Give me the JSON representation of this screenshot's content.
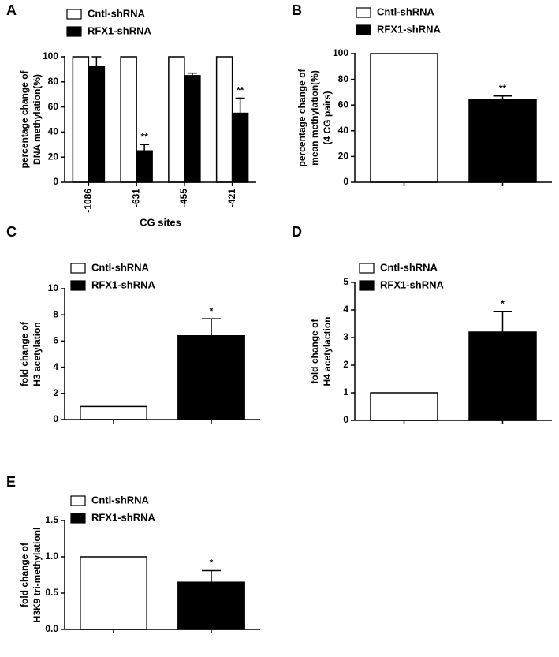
{
  "chart_data": [
    {
      "type": "bar",
      "panel": "A",
      "ylabel": [
        "percentage change of",
        "DNA methylation(%)"
      ],
      "xlabel": "CG sites",
      "categories": [
        "-1086",
        "-631",
        "-455",
        "-421"
      ],
      "series": [
        {
          "name": "Cntl-shRNA",
          "color": "#ffffff",
          "values": [
            100,
            100,
            100,
            100
          ]
        },
        {
          "name": "RFX1-shRNA",
          "color": "#000000",
          "values": [
            92,
            25,
            85,
            55
          ],
          "errors": [
            8,
            5,
            2,
            12
          ]
        }
      ],
      "significance": [
        null,
        "**",
        null,
        "**"
      ],
      "ylim": [
        0,
        100
      ],
      "yticks": [
        0,
        20,
        40,
        60,
        80,
        100
      ]
    },
    {
      "type": "bar",
      "panel": "B",
      "ylabel": [
        "percentage change of",
        "mean methylation(%)",
        "(4 CG pairs)"
      ],
      "series": [
        {
          "name": "Cntl-shRNA",
          "color": "#ffffff",
          "values": [
            100
          ]
        },
        {
          "name": "RFX1-shRNA",
          "color": "#000000",
          "values": [
            64
          ],
          "errors": [
            3
          ]
        }
      ],
      "significance": [
        "**"
      ],
      "ylim": [
        0,
        100
      ],
      "yticks": [
        0,
        20,
        40,
        60,
        80,
        100
      ]
    },
    {
      "type": "bar",
      "panel": "C",
      "ylabel": [
        "fold change of",
        "H3 acetylation"
      ],
      "series": [
        {
          "name": "Cntl-shRNA",
          "color": "#ffffff",
          "values": [
            1
          ]
        },
        {
          "name": "RFX1-shRNA",
          "color": "#000000",
          "values": [
            6.4
          ],
          "errors": [
            1.3
          ]
        }
      ],
      "significance": [
        "*"
      ],
      "ylim": [
        0,
        10
      ],
      "yticks": [
        0,
        2,
        4,
        6,
        8,
        10
      ]
    },
    {
      "type": "bar",
      "panel": "D",
      "ylabel": [
        "fold change of",
        "H4 acetylaction"
      ],
      "series": [
        {
          "name": "Cntl-shRNA",
          "color": "#ffffff",
          "values": [
            1
          ]
        },
        {
          "name": "RFX1-shRNA",
          "color": "#000000",
          "values": [
            3.2
          ],
          "errors": [
            0.75
          ]
        }
      ],
      "significance": [
        "*"
      ],
      "ylim": [
        0,
        5
      ],
      "yticks": [
        0,
        1,
        2,
        3,
        4,
        5
      ]
    },
    {
      "type": "bar",
      "panel": "E",
      "ylabel": [
        "fold change of",
        "H3K9 tri-methylationl"
      ],
      "series": [
        {
          "name": "Cntl-shRNA",
          "color": "#ffffff",
          "values": [
            1
          ]
        },
        {
          "name": "RFX1-shRNA",
          "color": "#000000",
          "values": [
            0.65
          ],
          "errors": [
            0.16
          ]
        }
      ],
      "significance": [
        "*"
      ],
      "ylim": [
        0,
        1.5
      ],
      "yticks": [
        {
          "value": 0,
          "label": "0.0"
        },
        0.5,
        {
          "value": 1,
          "label": "1.0"
        },
        {
          "value": 1.5,
          "label": "1.5"
        }
      ]
    }
  ]
}
